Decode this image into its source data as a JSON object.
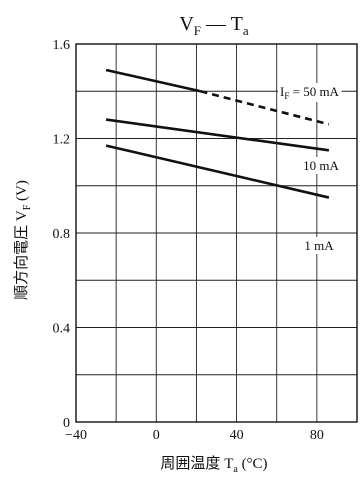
{
  "chart_data": {
    "type": "line",
    "title_main": "V",
    "title_main_sub": "F",
    "title_sep": " — ",
    "title_second": "T",
    "title_second_sub": "a",
    "xlabel_text": "周囲温度 ",
    "xlabel_sym": "T",
    "xlabel_sub": "a",
    "xlabel_unit": " (°C)",
    "ylabel_text": "順方向電圧 ",
    "ylabel_sym": "V",
    "ylabel_sub": "F",
    "ylabel_unit": " (V)",
    "xlim": [
      -40,
      100
    ],
    "ylim": [
      0,
      1.6
    ],
    "xticks": [
      -40,
      0,
      40,
      80
    ],
    "xtick_labels": [
      "−40",
      "0",
      "40",
      "80"
    ],
    "yticks": [
      0,
      0.4,
      0.8,
      1.2,
      1.6
    ],
    "ytick_labels": [
      "0",
      "0.4",
      "0.8",
      "1.2",
      "1.6"
    ],
    "x_grid_step": 20,
    "y_grid_step": 0.2,
    "grid": true,
    "series": [
      {
        "name": "I_F = 50 mA",
        "label_prefix": "I",
        "label_sub": "F",
        "label_rest": " = 50 mA",
        "segments": [
          {
            "style": "solid",
            "x": [
              -25,
              22
            ],
            "y": [
              1.49,
              1.4
            ]
          },
          {
            "style": "dashed",
            "x": [
              22,
              86
            ],
            "y": [
              1.4,
              1.26
            ]
          }
        ]
      },
      {
        "name": "10 mA",
        "label": "10 mA",
        "segments": [
          {
            "style": "solid",
            "x": [
              -25,
              86
            ],
            "y": [
              1.28,
              1.15
            ]
          }
        ]
      },
      {
        "name": "1 mA",
        "label": "1 mA",
        "segments": [
          {
            "style": "solid",
            "x": [
              -25,
              86
            ],
            "y": [
              1.17,
              0.95
            ]
          }
        ]
      }
    ]
  }
}
